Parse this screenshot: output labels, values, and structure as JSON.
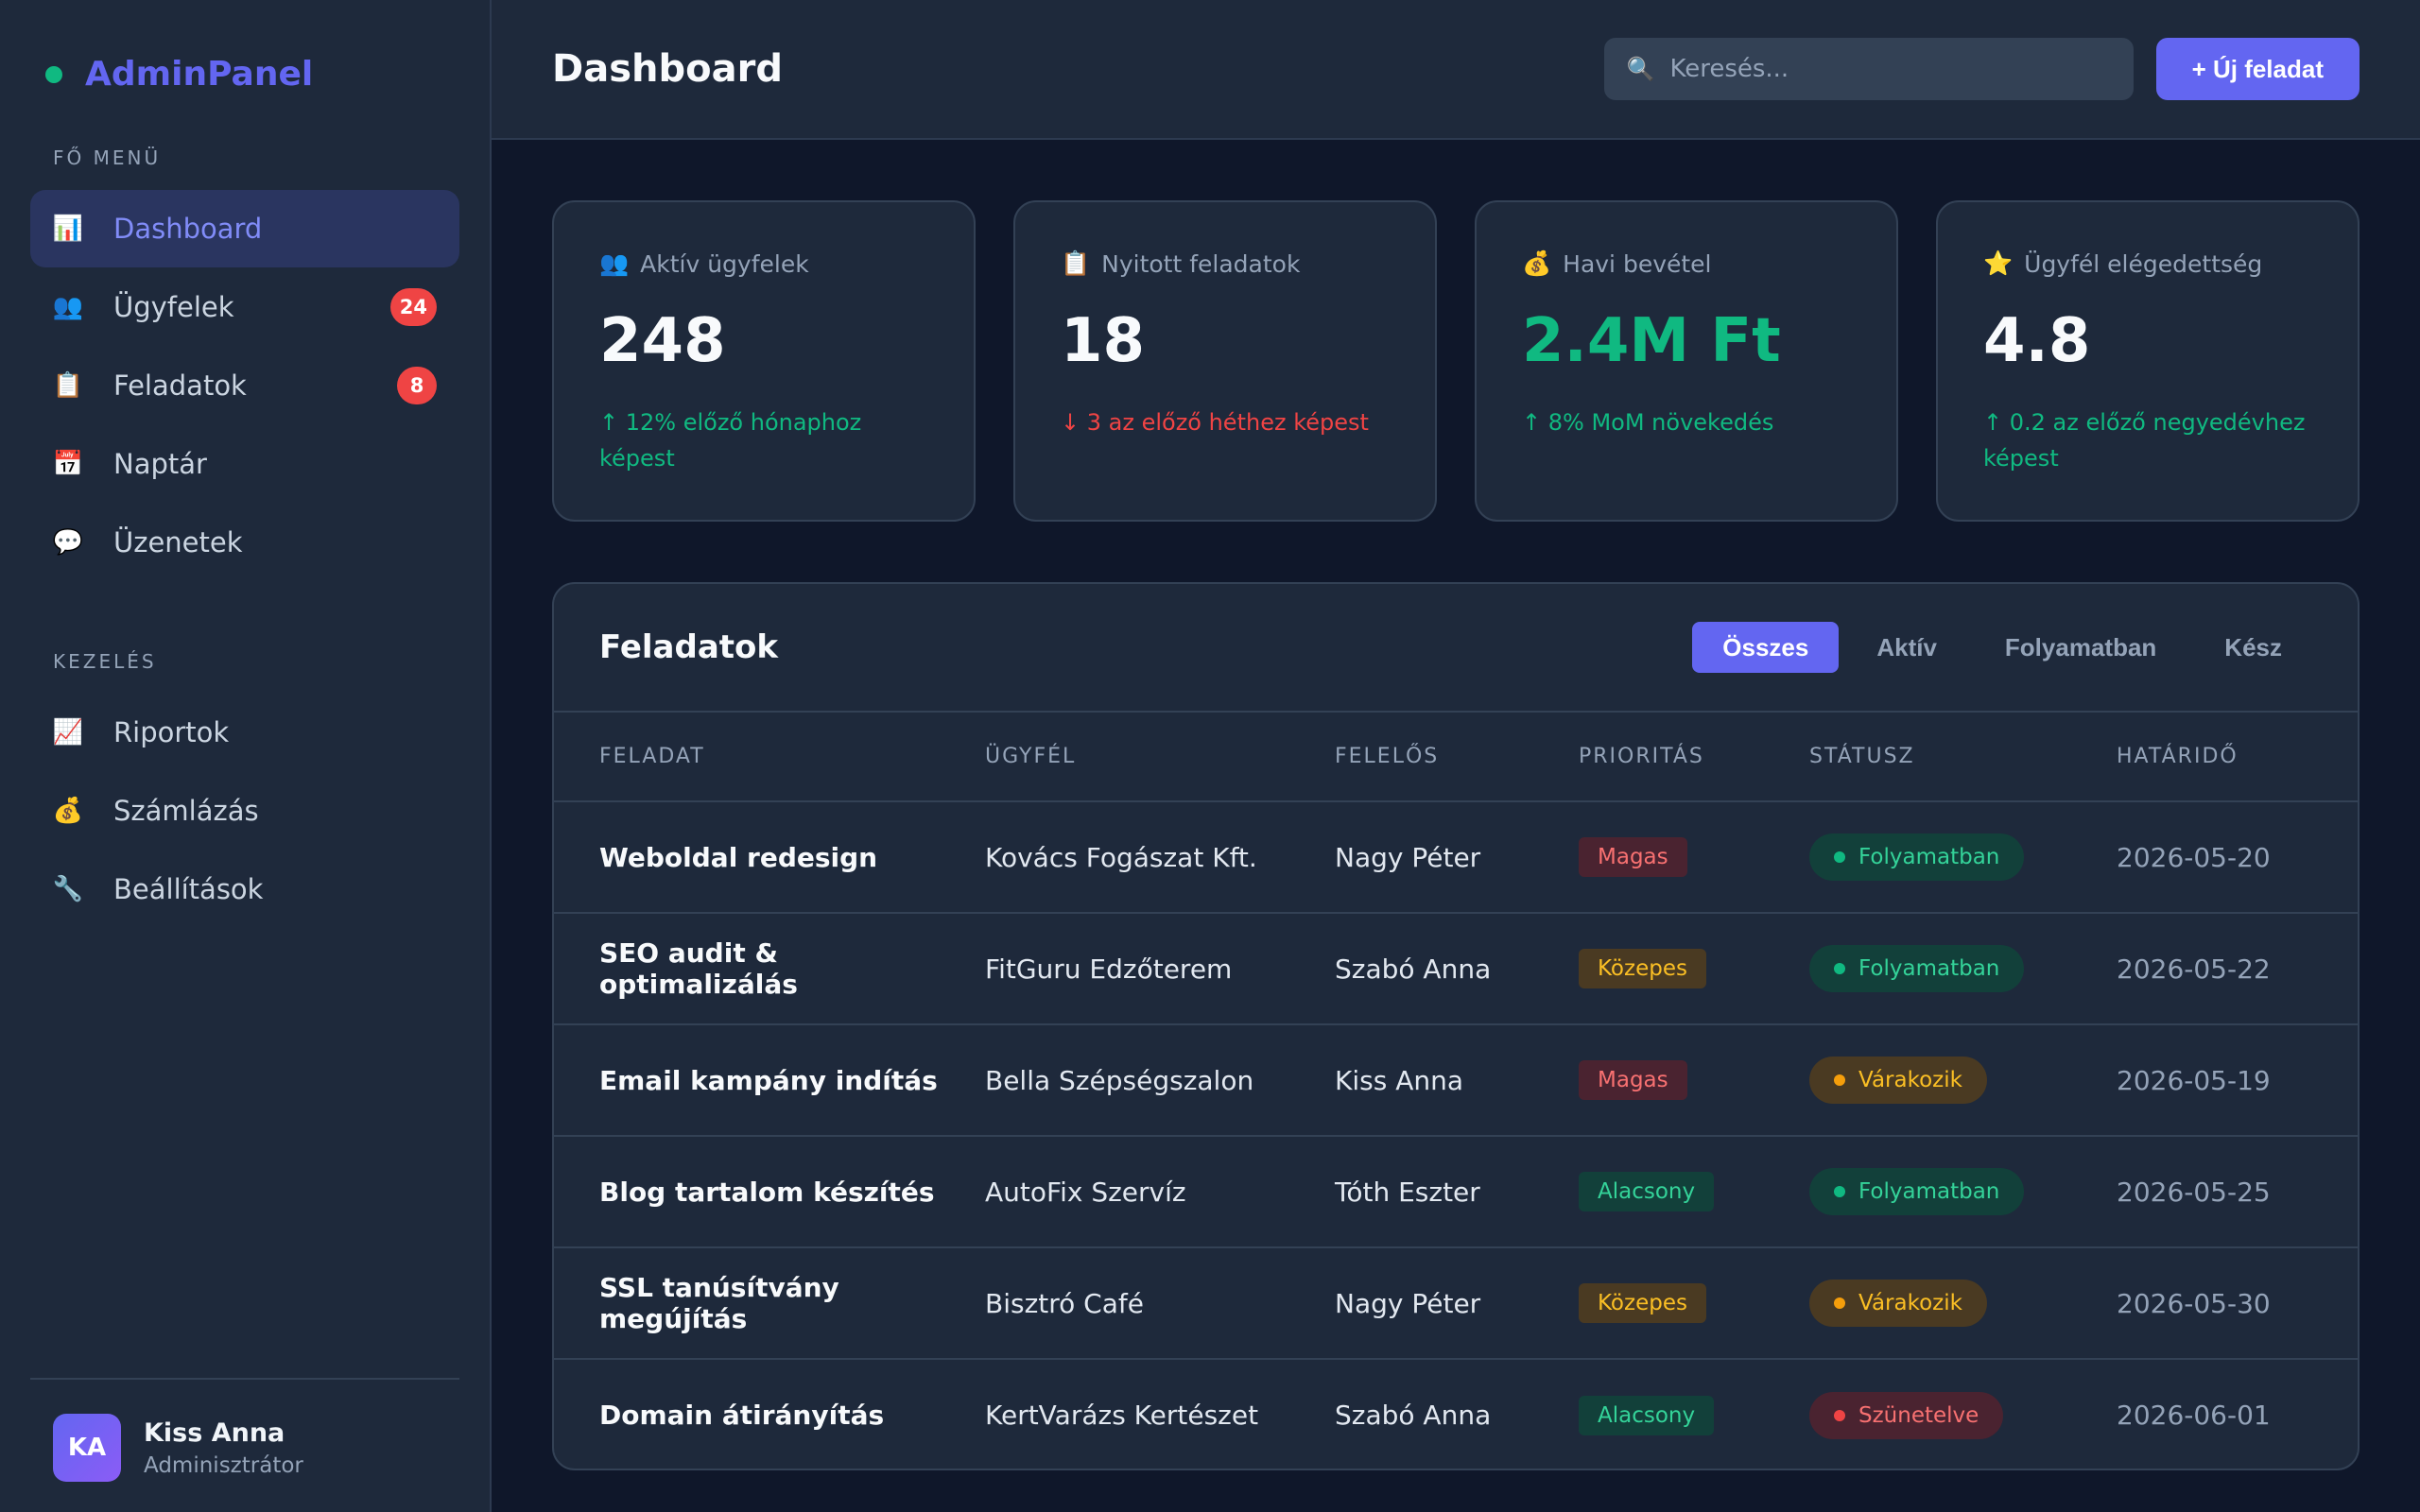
{
  "sidebar": {
    "brand": "AdminPanel",
    "main_menu_label": "FŐ MENÜ",
    "manage_label": "KEZELÉS",
    "main_items": [
      {
        "label": "Dashboard",
        "icon": "chart-icon",
        "glyph": "📊",
        "badge": ""
      },
      {
        "label": "Ügyfelek",
        "icon": "users-icon",
        "glyph": "👥",
        "badge": "24"
      },
      {
        "label": "Feladatok",
        "icon": "clipboard-icon",
        "glyph": "📋",
        "badge": "8"
      },
      {
        "label": "Naptár",
        "icon": "calendar-icon",
        "glyph": "📅",
        "badge": ""
      },
      {
        "label": "Üzenetek",
        "icon": "speech-bubble-icon",
        "glyph": "💬",
        "badge": ""
      }
    ],
    "manage_items": [
      {
        "label": "Riportok",
        "icon": "trend-chart-icon",
        "glyph": "📈"
      },
      {
        "label": "Számlázás",
        "icon": "money-bag-icon",
        "glyph": "💰"
      },
      {
        "label": "Beállítások",
        "icon": "wrench-icon",
        "glyph": "🔧"
      }
    ],
    "user": {
      "initials": "KA",
      "name": "Kiss Anna",
      "role": "Adminisztrátor"
    }
  },
  "header": {
    "title": "Dashboard",
    "search_placeholder": "Keresés...",
    "new_button": "+ Új feladat"
  },
  "stats": [
    {
      "icon": "users-icon",
      "glyph": "👥",
      "label": "Aktív ügyfelek",
      "value": "248",
      "change": "↑ 12% előző hónaphoz képest",
      "trend": "up"
    },
    {
      "icon": "clipboard-icon",
      "glyph": "📋",
      "label": "Nyitott feladatok",
      "value": "18",
      "change": "↓ 3 az előző héthez képest",
      "trend": "down"
    },
    {
      "icon": "money-bag-icon",
      "glyph": "💰",
      "label": "Havi bevétel",
      "value": "2.4M Ft",
      "change": "↑ 8% MoM növekedés",
      "trend": "up"
    },
    {
      "icon": "star-icon",
      "glyph": "⭐",
      "label": "Ügyfél elégedettség",
      "value": "4.8",
      "change": "↑ 0.2 az előző negyedévhez képest",
      "trend": "up"
    }
  ],
  "tasks": {
    "title": "Feladatok",
    "tabs": [
      "Összes",
      "Aktív",
      "Folyamatban",
      "Kész"
    ],
    "columns": [
      "FELADAT",
      "ÜGYFÉL",
      "FELELŐS",
      "PRIORITÁS",
      "STÁTUSZ",
      "HATÁRIDŐ"
    ],
    "rows": [
      {
        "task": "Weboldal redesign",
        "client": "Kovács Fogászat Kft.",
        "owner": "Nagy Péter",
        "priority": "Magas",
        "status": "Folyamatban",
        "due": "2026-05-20"
      },
      {
        "task": "SEO audit & optimalizálás",
        "client": "FitGuru Edzőterem",
        "owner": "Szabó Anna",
        "priority": "Közepes",
        "status": "Folyamatban",
        "due": "2026-05-22"
      },
      {
        "task": "Email kampány indítás",
        "client": "Bella Szépségszalon",
        "owner": "Kiss Anna",
        "priority": "Magas",
        "status": "Várakozik",
        "due": "2026-05-19"
      },
      {
        "task": "Blog tartalom készítés",
        "client": "AutoFix Szervíz",
        "owner": "Tóth Eszter",
        "priority": "Alacsony",
        "status": "Folyamatban",
        "due": "2026-05-25"
      },
      {
        "task": "SSL tanúsítvány megújítás",
        "client": "Bisztró Café",
        "owner": "Nagy Péter",
        "priority": "Közepes",
        "status": "Várakozik",
        "due": "2026-05-30"
      },
      {
        "task": "Domain átirányítás",
        "client": "KertVarázs Kertészet",
        "owner": "Szabó Anna",
        "priority": "Alacsony",
        "status": "Szünetelve",
        "due": "2026-06-01"
      }
    ]
  }
}
